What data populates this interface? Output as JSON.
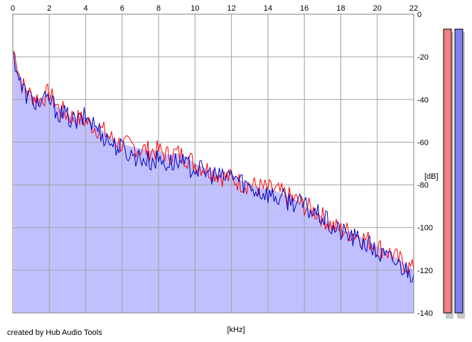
{
  "credit": "created by Hub Audio Tools",
  "colors": {
    "background": "#ffffff",
    "grid": "#a0a0a0",
    "fill": "#c0c0ff",
    "left_channel": "#ff0000",
    "right_channel": "#0000c0",
    "meter_left": "#f08080",
    "meter_right": "#8080f0"
  },
  "chart_data": {
    "type": "line",
    "title": "",
    "xlabel": "[kHz]",
    "ylabel": "[dB]",
    "xlim": [
      0,
      22
    ],
    "ylim": [
      -140,
      0
    ],
    "grid": true,
    "x_ticks": [
      "0",
      "2",
      "4",
      "6",
      "8",
      "10",
      "12",
      "14",
      "16",
      "18",
      "20",
      "22"
    ],
    "y_ticks": [
      "0",
      "-20",
      "-40",
      "-60",
      "-80",
      "-100",
      "-120",
      "-140"
    ],
    "x": [
      0.05,
      0.5,
      1,
      1.5,
      2,
      2.5,
      3,
      3.5,
      4,
      4.5,
      5,
      5.5,
      6,
      6.5,
      7,
      7.5,
      8,
      8.5,
      9,
      9.5,
      10,
      10.5,
      11,
      11.5,
      12,
      12.5,
      13,
      13.5,
      14,
      14.5,
      15,
      15.5,
      16,
      16.5,
      17,
      17.5,
      18,
      18.5,
      19,
      19.5,
      20,
      20.5,
      21,
      21.5,
      22
    ],
    "series": [
      {
        "values": [
          -17,
          -33,
          -38,
          -40,
          -37,
          -44,
          -47,
          -49,
          -50,
          -53,
          -55,
          -59,
          -61,
          -62,
          -63,
          -64,
          -64,
          -66,
          -65,
          -67,
          -70,
          -72,
          -74,
          -76,
          -77,
          -79,
          -80,
          -81,
          -82,
          -83,
          -85,
          -87,
          -90,
          -92,
          -95,
          -99,
          -101,
          -102,
          -104,
          -106,
          -109,
          -111,
          -114,
          -117,
          -120
        ]
      },
      {
        "values": [
          -20,
          -35,
          -40,
          -42,
          -40,
          -46,
          -48,
          -51,
          -48,
          -52,
          -57,
          -61,
          -63,
          -66,
          -67,
          -69,
          -68,
          -70,
          -69,
          -71,
          -72,
          -74,
          -75,
          -77,
          -75,
          -78,
          -81,
          -83,
          -84,
          -86,
          -87,
          -88,
          -90,
          -93,
          -95,
          -100,
          -102,
          -104,
          -106,
          -108,
          -112,
          -114,
          -116,
          -119,
          -122
        ]
      }
    ]
  }
}
